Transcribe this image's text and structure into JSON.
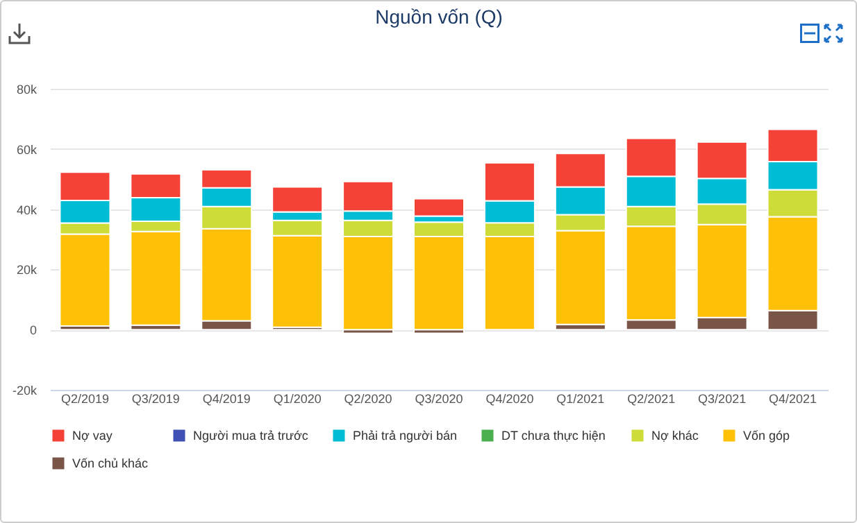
{
  "chart_data": {
    "type": "bar",
    "title": "Nguồn vốn (Q)",
    "stacked": true,
    "categories": [
      "Q2/2019",
      "Q3/2019",
      "Q4/2019",
      "Q1/2020",
      "Q2/2020",
      "Q3/2020",
      "Q4/2020",
      "Q1/2021",
      "Q2/2021",
      "Q3/2021",
      "Q4/2021"
    ],
    "series": [
      {
        "name": "Vốn chủ khác",
        "color": "#795548",
        "values": [
          1200,
          1500,
          2900,
          800,
          -1200,
          -1200,
          0,
          1700,
          3200,
          4000,
          6300
        ]
      },
      {
        "name": "Vốn góp",
        "color": "#ffc107",
        "values": [
          30500,
          31100,
          30600,
          30400,
          30900,
          30900,
          30900,
          31200,
          31100,
          30900,
          31200
        ]
      },
      {
        "name": "Nợ khác",
        "color": "#cddc39",
        "values": [
          3700,
          3400,
          7400,
          5100,
          5400,
          4800,
          4600,
          5300,
          6600,
          6800,
          9000
        ]
      },
      {
        "name": "DT chưa thực hiện",
        "color": "#4caf50",
        "values": [
          0,
          0,
          0,
          0,
          0,
          0,
          0,
          0,
          0,
          0,
          0
        ]
      },
      {
        "name": "Phải trả người bán",
        "color": "#00bcd4",
        "values": [
          7500,
          7800,
          6200,
          2800,
          3100,
          2000,
          7300,
          9200,
          10000,
          8500,
          9300
        ]
      },
      {
        "name": "Người mua trả trước",
        "color": "#3f51b5",
        "values": [
          0,
          0,
          0,
          0,
          0,
          0,
          0,
          0,
          0,
          0,
          0
        ]
      },
      {
        "name": "Nợ vay",
        "color": "#f44336",
        "values": [
          9400,
          7900,
          6000,
          8300,
          9800,
          5800,
          12600,
          11100,
          12600,
          12100,
          10700
        ]
      }
    ],
    "ylim": [
      -20000,
      80000
    ],
    "yticks": [
      {
        "value": -20000,
        "label": "-20k"
      },
      {
        "value": 0,
        "label": "0"
      },
      {
        "value": 20000,
        "label": "20k"
      },
      {
        "value": 40000,
        "label": "40k"
      },
      {
        "value": 60000,
        "label": "60k"
      },
      {
        "value": 80000,
        "label": "80k"
      }
    ],
    "grid": "y",
    "legend": "bottom"
  }
}
